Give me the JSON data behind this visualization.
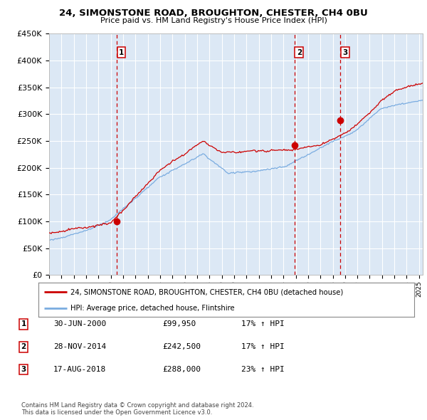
{
  "title": "24, SIMONSTONE ROAD, BROUGHTON, CHESTER, CH4 0BU",
  "subtitle": "Price paid vs. HM Land Registry's House Price Index (HPI)",
  "legend_line1": "24, SIMONSTONE ROAD, BROUGHTON, CHESTER, CH4 0BU (detached house)",
  "legend_line2": "HPI: Average price, detached house, Flintshire",
  "sale_points": [
    {
      "label": "1",
      "x": 2000.5,
      "price": 99950
    },
    {
      "label": "2",
      "x": 2014.92,
      "price": 242500
    },
    {
      "label": "3",
      "x": 2018.63,
      "price": 288000
    }
  ],
  "table_rows": [
    {
      "num": "1",
      "date": "30-JUN-2000",
      "price": "£99,950",
      "hpi": "17% ↑ HPI"
    },
    {
      "num": "2",
      "date": "28-NOV-2014",
      "price": "£242,500",
      "hpi": "17% ↑ HPI"
    },
    {
      "num": "3",
      "date": "17-AUG-2018",
      "price": "£288,000",
      "hpi": "23% ↑ HPI"
    }
  ],
  "footer1": "Contains HM Land Registry data © Crown copyright and database right 2024.",
  "footer2": "This data is licensed under the Open Government Licence v3.0.",
  "ylim": [
    0,
    450000
  ],
  "xlim_start": 1995.0,
  "xlim_end": 2025.3,
  "background_color": "#dce8f5",
  "red_color": "#cc0000",
  "blue_color": "#7aace0",
  "grid_color": "#ffffff",
  "vline_color": "#cc0000"
}
